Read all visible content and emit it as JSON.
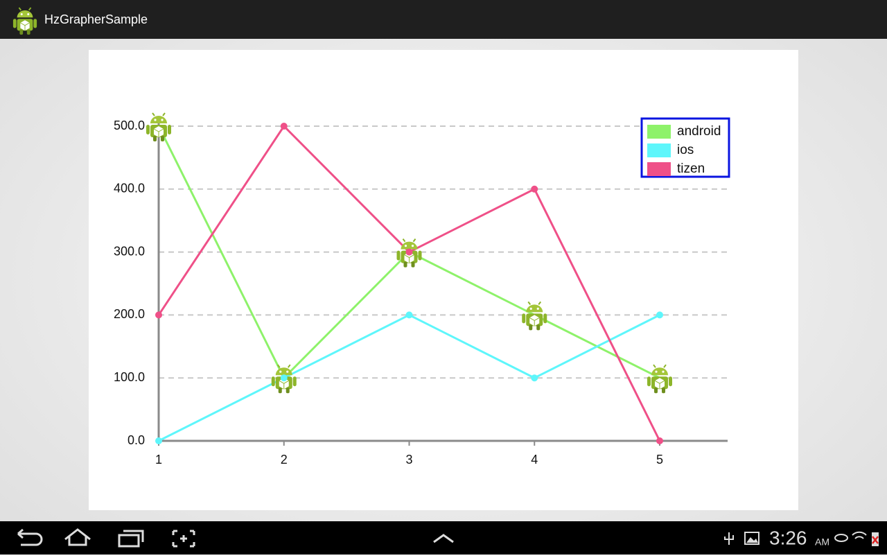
{
  "app_bar": {
    "title": "HzGrapherSample"
  },
  "status_bar": {
    "time": "3:26",
    "period": "AM"
  },
  "chart_data": {
    "type": "line",
    "categories": [
      "1",
      "2",
      "3",
      "4",
      "5"
    ],
    "series": [
      {
        "name": "android",
        "color": "#8ef26a",
        "marker": "android-icon",
        "values": [
          500,
          100,
          300,
          200,
          100
        ]
      },
      {
        "name": "ios",
        "color": "#5ef6fb",
        "marker": "circle",
        "values": [
          0,
          100,
          200,
          100,
          200
        ]
      },
      {
        "name": "tizen",
        "color": "#ef5088",
        "marker": "circle",
        "values": [
          200,
          500,
          300,
          400,
          0
        ]
      }
    ],
    "ylim": [
      0,
      500
    ],
    "yticks": [
      {
        "value": 0,
        "label": "0.0"
      },
      {
        "value": 100,
        "label": "100.0"
      },
      {
        "value": 200,
        "label": "200.0"
      },
      {
        "value": 300,
        "label": "300.0"
      },
      {
        "value": 400,
        "label": "400.0"
      },
      {
        "value": 500,
        "label": "500.0"
      }
    ],
    "grid": true,
    "legend": "top-right"
  }
}
